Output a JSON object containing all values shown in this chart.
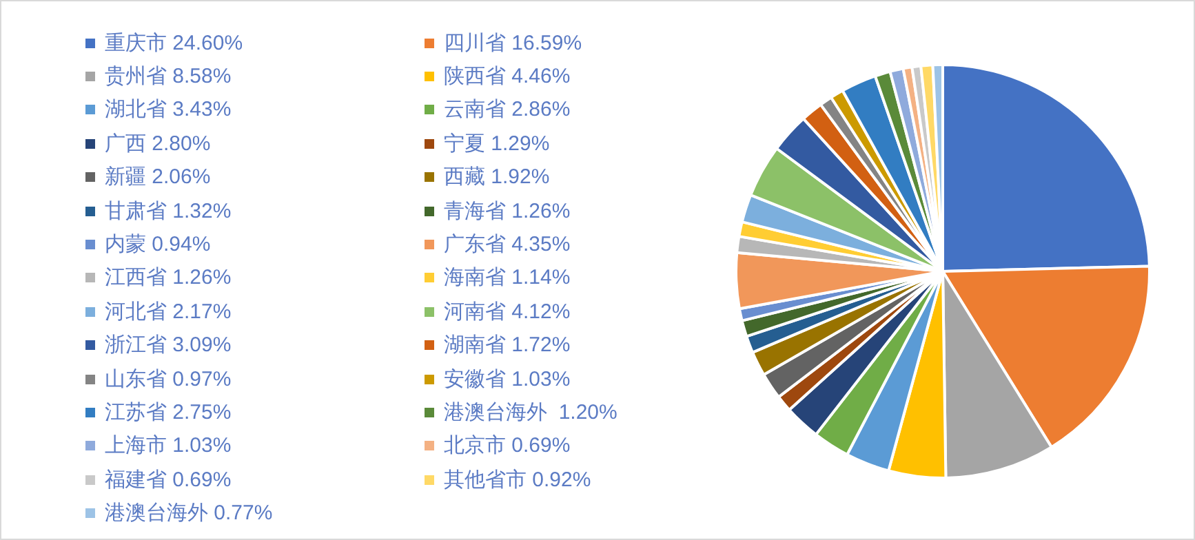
{
  "chart_data": {
    "type": "pie",
    "legend": "left",
    "categories": [
      "重庆市 24.60%",
      "四川省 16.59%",
      "贵州省 8.58%",
      "陕西省 4.46%",
      "湖北省 3.43%",
      "云南省 2.86%",
      "广西 2.80%",
      "宁夏 1.29%",
      "新疆 2.06%",
      "西藏 1.92%",
      "甘肃省 1.32%",
      "青海省 1.26%",
      "内蒙 0.94%",
      "广东省 4.35%",
      "江西省 1.26%",
      "海南省 1.14%",
      "河北省 2.17%",
      "河南省 4.12%",
      "浙江省 3.09%",
      "湖南省 1.72%",
      "山东省 0.97%",
      "安徽省 1.03%",
      "江苏省 2.75%",
      "港澳台海外  1.20%",
      "上海市 1.03%",
      "北京市 0.69%",
      "福建省 0.69%",
      "其他省市 0.92%",
      "港澳台海外 0.77%"
    ],
    "values": [
      24.6,
      16.59,
      8.58,
      4.46,
      3.43,
      2.86,
      2.8,
      1.29,
      2.06,
      1.92,
      1.32,
      1.26,
      0.94,
      4.35,
      1.26,
      1.14,
      2.17,
      4.12,
      3.09,
      1.72,
      0.97,
      1.03,
      2.75,
      1.2,
      1.03,
      0.69,
      0.69,
      0.92,
      0.77
    ],
    "colors": [
      "#4472c4",
      "#ed7d31",
      "#a5a5a5",
      "#ffc000",
      "#5b9bd5",
      "#70ad47",
      "#264478",
      "#9e480e",
      "#636363",
      "#997300",
      "#255e91",
      "#43682b",
      "#698ed0",
      "#f1975a",
      "#b7b7b7",
      "#ffcd33",
      "#7cafdd",
      "#8cc168",
      "#335aa1",
      "#d26012",
      "#848484",
      "#cc9a00",
      "#327dc2",
      "#5a8a39",
      "#8faadc",
      "#f4b183",
      "#c9c9c9",
      "#ffd966",
      "#9dc3e6"
    ]
  }
}
